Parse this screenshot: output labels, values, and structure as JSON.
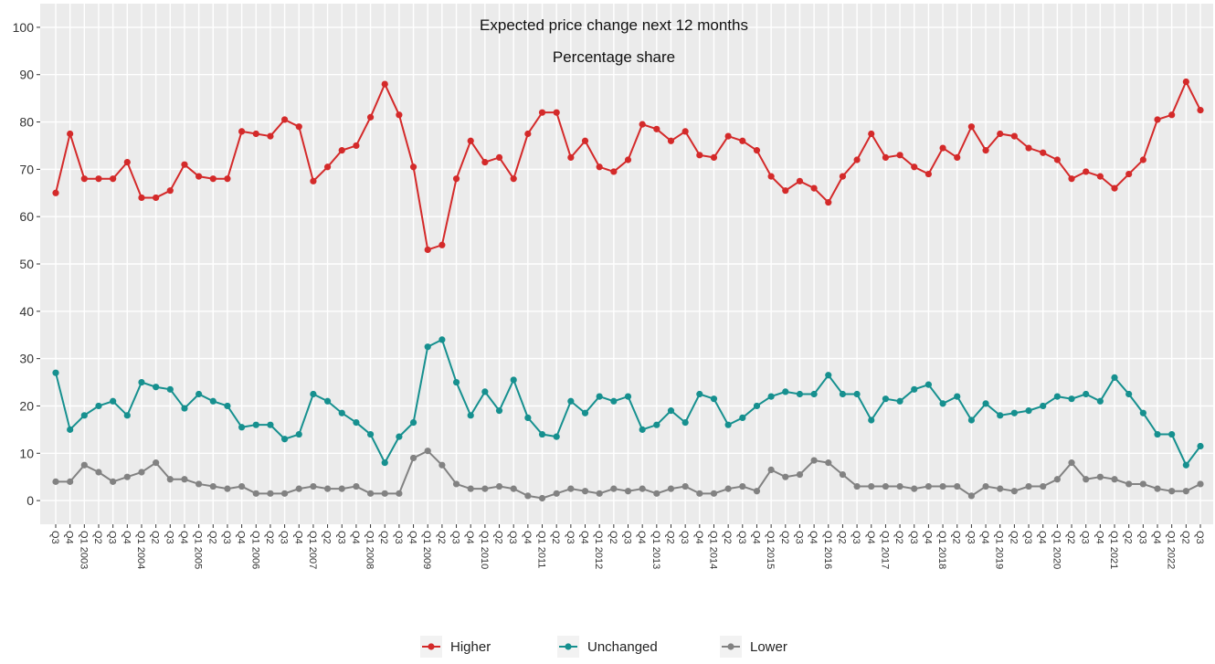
{
  "chart_data": {
    "type": "line",
    "title": "Expected price change next 12 months",
    "subtitle": "Percentage share",
    "categories": [
      "Q3",
      "Q4",
      "Q1 2003",
      "Q2",
      "Q3",
      "Q4",
      "Q1 2004",
      "Q2",
      "Q3",
      "Q4",
      "Q1 2005",
      "Q2",
      "Q3",
      "Q4",
      "Q1 2006",
      "Q2",
      "Q3",
      "Q4",
      "Q1 2007",
      "Q2",
      "Q3",
      "Q4",
      "Q1 2008",
      "Q2",
      "Q3",
      "Q4",
      "Q1 2009",
      "Q2",
      "Q3",
      "Q4",
      "Q1 2010",
      "Q2",
      "Q3",
      "Q4",
      "Q1 2011",
      "Q2",
      "Q3",
      "Q4",
      "Q1 2012",
      "Q2",
      "Q3",
      "Q4",
      "Q1 2013",
      "Q2",
      "Q3",
      "Q4",
      "Q1 2014",
      "Q2",
      "Q3",
      "Q4",
      "Q1 2015",
      "Q2",
      "Q3",
      "Q4",
      "Q1 2016",
      "Q2",
      "Q3",
      "Q4",
      "Q1 2017",
      "Q2",
      "Q3",
      "Q4",
      "Q1 2018",
      "Q2",
      "Q3",
      "Q4",
      "Q1 2019",
      "Q2",
      "Q3",
      "Q4",
      "Q1 2020",
      "Q2",
      "Q3",
      "Q4",
      "Q1 2021",
      "Q2",
      "Q3",
      "Q4",
      "Q1 2022",
      "Q2",
      "Q3"
    ],
    "series": [
      {
        "name": "Higher",
        "color": "#d42a2a",
        "values": [
          65,
          77.5,
          68,
          68,
          68,
          71.5,
          64,
          64,
          65.5,
          71,
          68.5,
          68,
          68,
          78,
          77.5,
          77,
          80.5,
          79,
          67.5,
          70.5,
          74,
          75,
          81,
          88,
          81.5,
          70.5,
          53,
          54,
          68,
          76,
          71.5,
          72.5,
          68,
          77.5,
          82,
          82,
          72.5,
          76,
          70.5,
          69.5,
          72,
          79.5,
          78.5,
          76,
          78,
          73,
          72.5,
          77,
          76,
          74,
          68.5,
          65.5,
          67.5,
          66,
          63,
          68.5,
          72,
          77.5,
          72.5,
          73,
          70.5,
          69,
          74.5,
          72.5,
          79,
          74,
          77.5,
          77,
          74.5,
          73.5,
          72,
          68,
          69.5,
          68.5,
          66,
          69,
          72,
          80.5,
          81.5,
          88.5,
          82.5
        ]
      },
      {
        "name": "Unchanged",
        "color": "#16908f",
        "values": [
          27,
          15,
          18,
          20,
          21,
          18,
          25,
          24,
          23.5,
          19.5,
          22.5,
          21,
          20,
          15.5,
          16,
          16,
          13,
          14,
          22.5,
          21,
          18.5,
          16.5,
          14,
          8,
          13.5,
          16.5,
          32.5,
          34,
          25,
          18,
          23,
          19,
          25.5,
          17.5,
          14,
          13.5,
          21,
          18.5,
          22,
          21,
          22,
          15,
          16,
          19,
          16.5,
          22.5,
          21.5,
          16,
          17.5,
          20,
          22,
          23,
          22.5,
          22.5,
          26.5,
          22.5,
          22.5,
          17,
          21.5,
          21,
          23.5,
          24.5,
          20.5,
          22,
          17,
          20.5,
          18,
          18.5,
          19,
          20,
          22,
          21.5,
          22.5,
          21,
          26,
          22.5,
          18.5,
          14,
          14,
          7.5,
          11.5
        ]
      },
      {
        "name": "Lower",
        "color": "#828282",
        "values": [
          4,
          4,
          7.5,
          6,
          4,
          5,
          6,
          8,
          4.5,
          4.5,
          3.5,
          3,
          2.5,
          3,
          1.5,
          1.5,
          1.5,
          2.5,
          3,
          2.5,
          2.5,
          3,
          1.5,
          1.5,
          1.5,
          9,
          10.5,
          7.5,
          3.5,
          2.5,
          2.5,
          3,
          2.5,
          1,
          0.5,
          1.5,
          2.5,
          2,
          1.5,
          2.5,
          2,
          2.5,
          1.5,
          2.5,
          3,
          1.5,
          1.5,
          2.5,
          3,
          2,
          6.5,
          5,
          5.5,
          8.5,
          8,
          5.5,
          3,
          3,
          3,
          3,
          2.5,
          3,
          3,
          3,
          1,
          3,
          2.5,
          2,
          3,
          3,
          4.5,
          8,
          4.5,
          5,
          4.5,
          3.5,
          3.5,
          2.5,
          2,
          2,
          3.5
        ]
      }
    ],
    "ylim": [
      -5,
      105
    ],
    "yticks": [
      0,
      10,
      20,
      30,
      40,
      50,
      60,
      70,
      80,
      90,
      100
    ],
    "grid": true,
    "legend": "bottom"
  }
}
